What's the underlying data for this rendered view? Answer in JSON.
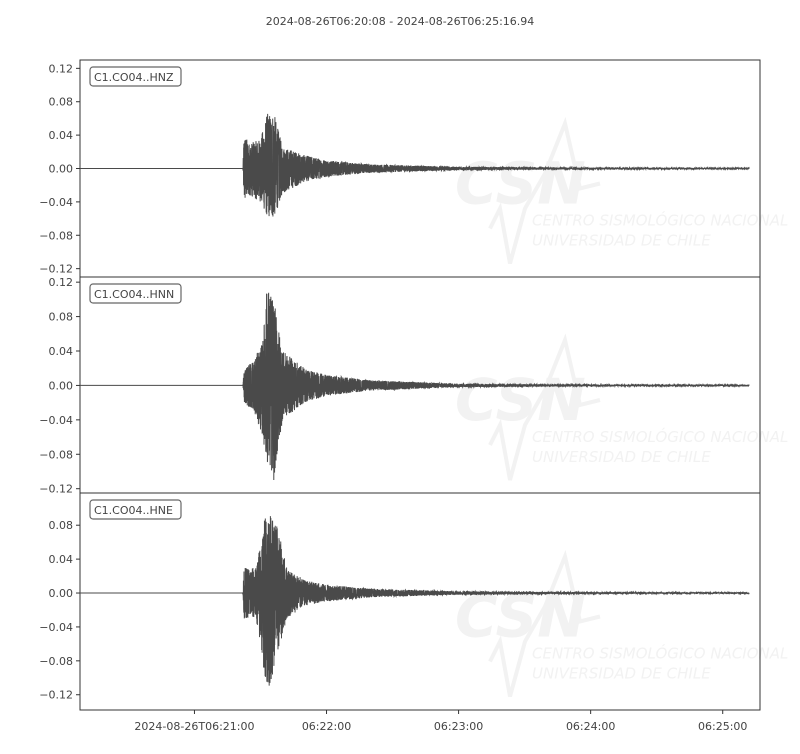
{
  "chart_data": {
    "type": "line",
    "title": "2024-08-26T06:20:08  -  2024-08-26T06:25:16.94",
    "x_range": [
      "06:20:08",
      "06:25:16.94"
    ],
    "x_ticks": [
      "06:21:00",
      "06:22:00",
      "06:23:00",
      "06:24:00",
      "06:25:00"
    ],
    "x_tick_labels": [
      "2024-08-26T06:21:00",
      "06:22:00",
      "06:23:00",
      "06:24:00",
      "06:25:00"
    ],
    "grid": false,
    "line_color": "#4a4a4a",
    "watermark": {
      "logo": "CSN",
      "line1": "CENTRO SISMOLÓGICO NACIONAL",
      "line2": "UNIVERSIDAD DE CHILE"
    },
    "series": [
      {
        "name": "C1.CO04..HNZ",
        "ylim": [
          -0.13,
          0.13
        ],
        "y_ticks": [
          0.12,
          0.08,
          0.04,
          0.0,
          -0.04,
          -0.08,
          -0.12
        ],
        "y_tick_labels": [
          "0.12",
          "0.08",
          "0.04",
          "0.00",
          "−0.04",
          "−0.08",
          "−0.12"
        ],
        "trace_end": "06:25:12",
        "envelope": [
          [
            "06:21:22",
            0.0,
            0.0
          ],
          [
            "06:21:22.5",
            0.042,
            -0.043
          ],
          [
            "06:21:25",
            0.03,
            -0.032
          ],
          [
            "06:21:30",
            0.035,
            -0.04
          ],
          [
            "06:21:33",
            0.066,
            -0.058
          ],
          [
            "06:21:36",
            0.068,
            -0.061
          ],
          [
            "06:21:40",
            0.026,
            -0.03
          ],
          [
            "06:21:50",
            0.016,
            -0.016
          ],
          [
            "06:22:00",
            0.01,
            -0.01
          ],
          [
            "06:22:20",
            0.005,
            -0.005
          ],
          [
            "06:23:00",
            0.002,
            -0.002
          ],
          [
            "06:24:00",
            0.001,
            -0.001
          ],
          [
            "06:25:12",
            0.0005,
            -0.0005
          ]
        ]
      },
      {
        "name": "C1.CO04..HNN",
        "ylim": [
          -0.125,
          0.126
        ],
        "y_ticks": [
          0.12,
          0.08,
          0.04,
          0.0,
          -0.04,
          -0.08,
          -0.12
        ],
        "y_tick_labels": [
          "0.12",
          "0.08",
          "0.04",
          "0.00",
          "−0.04",
          "−0.08",
          "−0.12"
        ],
        "trace_end": "06:25:12",
        "envelope": [
          [
            "06:21:22",
            0.0,
            0.0
          ],
          [
            "06:21:22.5",
            0.02,
            -0.02
          ],
          [
            "06:21:27",
            0.03,
            -0.03
          ],
          [
            "06:21:31",
            0.05,
            -0.06
          ],
          [
            "06:21:33",
            0.118,
            -0.09
          ],
          [
            "06:21:36",
            0.1,
            -0.112
          ],
          [
            "06:21:40",
            0.04,
            -0.04
          ],
          [
            "06:21:50",
            0.02,
            -0.02
          ],
          [
            "06:22:00",
            0.012,
            -0.012
          ],
          [
            "06:22:20",
            0.006,
            -0.006
          ],
          [
            "06:23:00",
            0.002,
            -0.002
          ],
          [
            "06:24:00",
            0.001,
            -0.001
          ],
          [
            "06:25:12",
            0.0005,
            -0.0005
          ]
        ]
      },
      {
        "name": "C1.CO04..HNE",
        "ylim": [
          -0.138,
          0.118
        ],
        "y_ticks": [
          0.08,
          0.04,
          0.0,
          -0.04,
          -0.08,
          -0.12
        ],
        "y_tick_labels": [
          "0.08",
          "0.04",
          "0.00",
          "−0.04",
          "−0.08",
          "−0.12"
        ],
        "trace_end": "06:25:12",
        "envelope": [
          [
            "06:21:22",
            0.0,
            0.0
          ],
          [
            "06:21:22.5",
            0.03,
            -0.03
          ],
          [
            "06:21:28",
            0.03,
            -0.03
          ],
          [
            "06:21:32",
            0.09,
            -0.1
          ],
          [
            "06:21:34",
            0.094,
            -0.112
          ],
          [
            "06:21:37",
            0.085,
            -0.08
          ],
          [
            "06:21:42",
            0.03,
            -0.03
          ],
          [
            "06:21:50",
            0.015,
            -0.015
          ],
          [
            "06:22:00",
            0.01,
            -0.01
          ],
          [
            "06:22:20",
            0.005,
            -0.005
          ],
          [
            "06:23:00",
            0.002,
            -0.002
          ],
          [
            "06:24:00",
            0.001,
            -0.001
          ],
          [
            "06:25:12",
            0.0005,
            -0.0005
          ]
        ]
      }
    ]
  }
}
